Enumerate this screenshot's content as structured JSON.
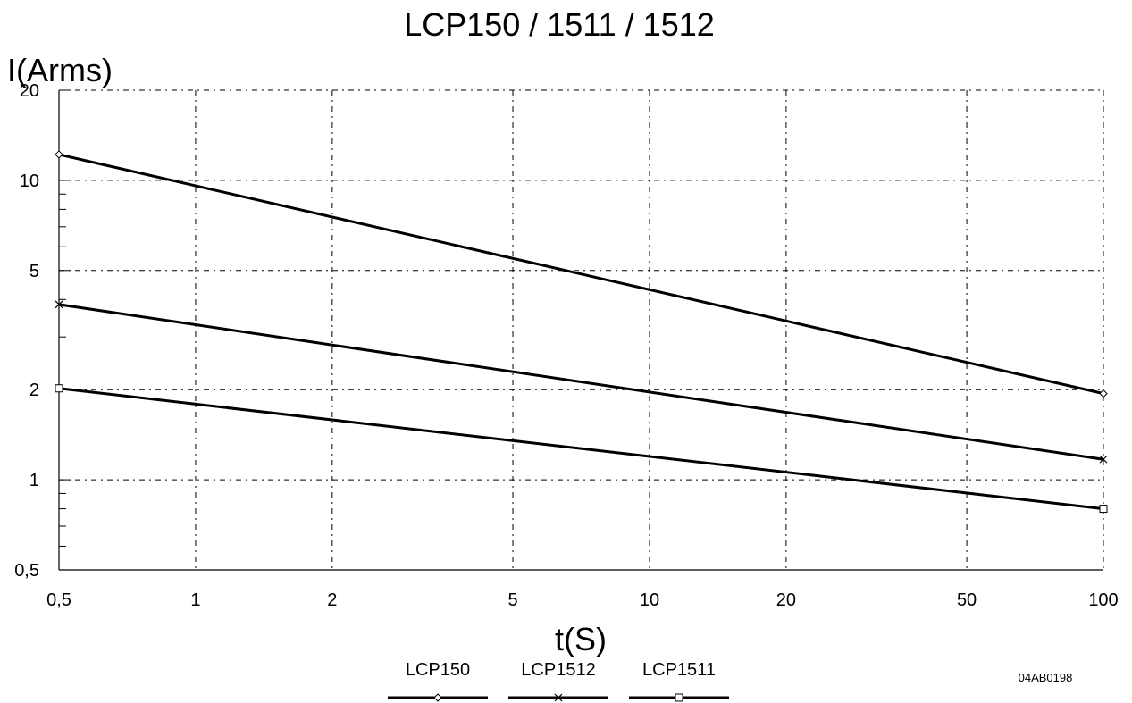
{
  "chart_data": {
    "type": "line",
    "title": "LCP150 / 1511 / 1512",
    "xlabel": "t(S)",
    "ylabel": "I(Arms)",
    "x_scale": "log",
    "y_scale": "log",
    "xlim": [
      0.5,
      100
    ],
    "ylim": [
      0.5,
      20
    ],
    "x_ticks": [
      0.5,
      1,
      2,
      5,
      10,
      20,
      50,
      100
    ],
    "x_tick_labels": [
      "0,5",
      "1",
      "2",
      "5",
      "10",
      "20",
      "50",
      "100"
    ],
    "y_ticks": [
      0.5,
      1,
      2,
      5,
      10,
      20
    ],
    "y_tick_labels": [
      "0,5",
      "1",
      "2",
      "5",
      "10",
      "20"
    ],
    "grid": true,
    "legend_position": "bottom-center",
    "series": [
      {
        "name": "LCP150",
        "marker": "diamond",
        "x": [
          0.5,
          100
        ],
        "y": [
          12.2,
          1.94
        ]
      },
      {
        "name": "LCP1512",
        "marker": "cross",
        "x": [
          0.5,
          100
        ],
        "y": [
          3.85,
          1.17
        ]
      },
      {
        "name": "LCP1511",
        "marker": "square",
        "x": [
          0.5,
          100
        ],
        "y": [
          2.02,
          0.8
        ]
      }
    ],
    "annotation": "04AB0198"
  }
}
